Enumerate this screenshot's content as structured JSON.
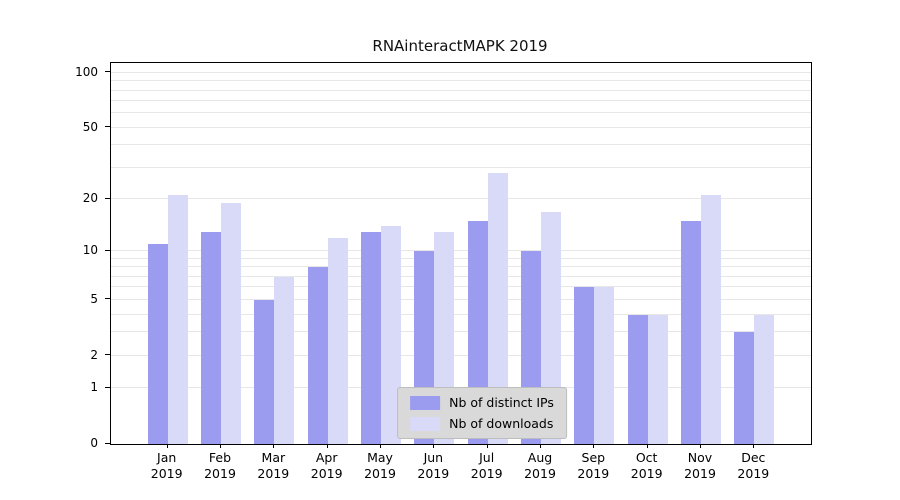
{
  "chart_data": {
    "type": "bar",
    "title": "RNAinteractMAPK 2019",
    "categories": [
      "Jan 2019",
      "Feb 2019",
      "Mar 2019",
      "Apr 2019",
      "May 2019",
      "Jun 2019",
      "Jul 2019",
      "Aug 2019",
      "Sep 2019",
      "Oct 2019",
      "Nov 2019",
      "Dec 2019"
    ],
    "series": [
      {
        "name": "Nb of distinct IPs",
        "color": "#9b9bf0",
        "values": [
          11,
          13,
          5,
          8,
          13,
          10,
          15,
          10,
          6,
          4,
          15,
          3
        ]
      },
      {
        "name": "Nb of downloads",
        "color": "#d9d9f8",
        "values": [
          21,
          19,
          7,
          12,
          14,
          13,
          28,
          17,
          6,
          4,
          21,
          4
        ]
      }
    ],
    "yticks": [
      100,
      50,
      20,
      10,
      5,
      2,
      1,
      0
    ],
    "gridlines": [
      1,
      2,
      3,
      4,
      5,
      6,
      7,
      8,
      9,
      10,
      20,
      30,
      40,
      50,
      60,
      70,
      80,
      90,
      100
    ],
    "scale": "log1p",
    "ylim": [
      0,
      113
    ],
    "xlabel": "",
    "ylabel": "",
    "grid": true,
    "legend_position": "lower center"
  }
}
